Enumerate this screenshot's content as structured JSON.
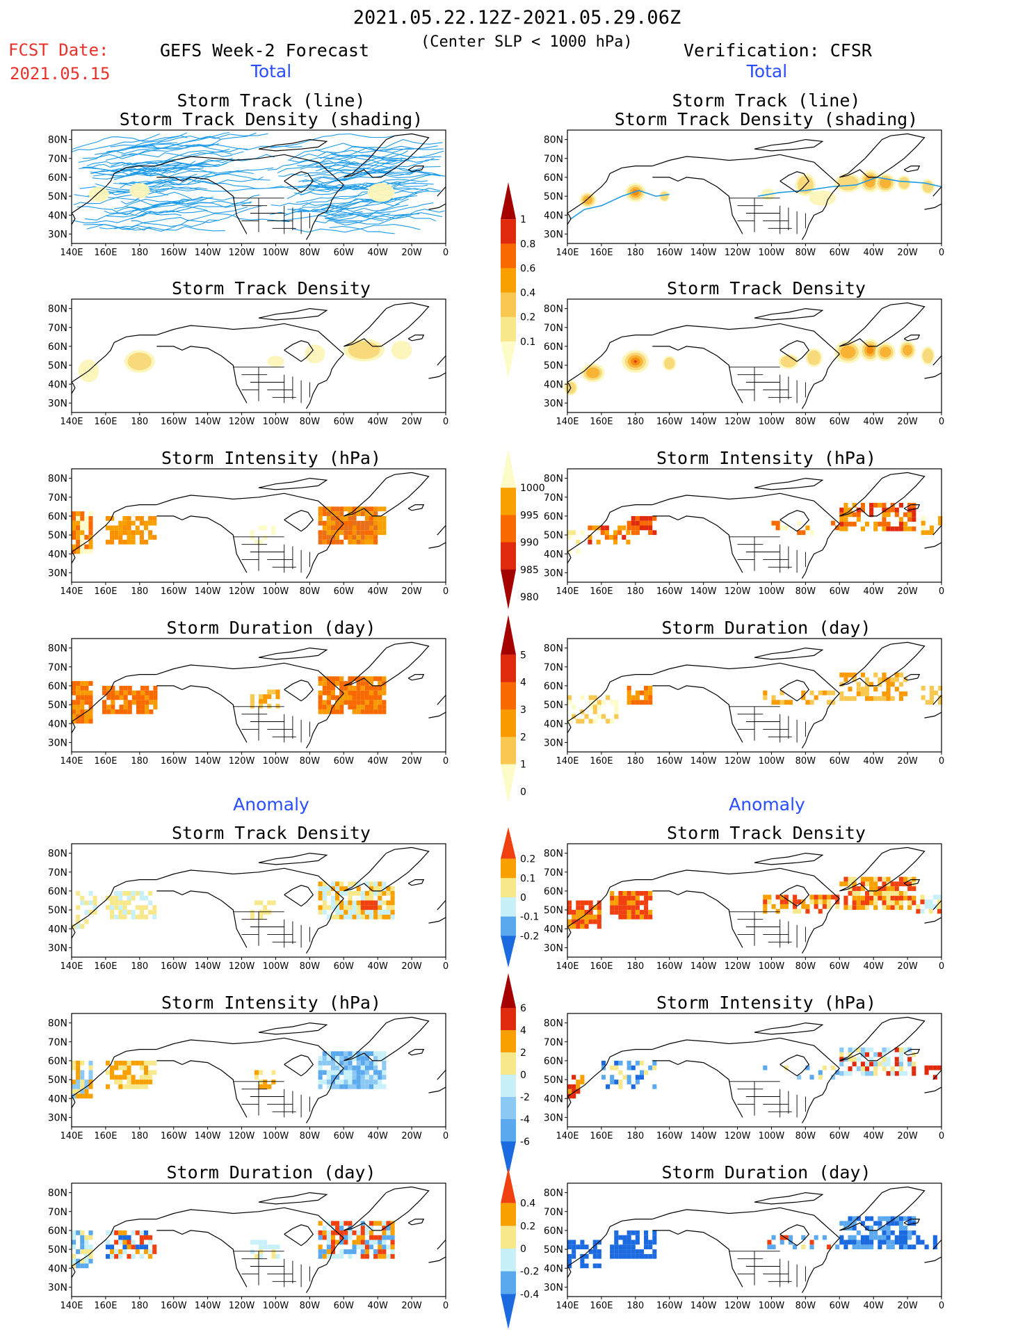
{
  "header": {
    "date_range": "2021.05.22.12Z-2021.05.29.06Z",
    "criterion": "(Center SLP < 1000 hPa)",
    "fcst_label": "FCST Date:",
    "fcst_date": "2021.05.15",
    "left_title": "GEFS Week-2 Forecast",
    "right_title": "Verification: CFSR"
  },
  "sections": {
    "total_left": "Total",
    "total_right": "Total",
    "anomaly_left": "Anomaly",
    "anomaly_right": "Anomaly"
  },
  "panel_titles": {
    "track_line_1": "Storm Track (line)",
    "track_line_2": "Storm Track Density (shading)",
    "density": "Storm Track Density",
    "intensity": "Storm Intensity (hPa)",
    "duration": "Storm Duration (day)"
  },
  "axes": {
    "lon_ticks": [
      "140E",
      "160E",
      "180",
      "160W",
      "140W",
      "120W",
      "100W",
      "80W",
      "60W",
      "40W",
      "20W",
      "0"
    ],
    "lat_ticks": [
      "80N",
      "70N",
      "60N",
      "50N",
      "40N",
      "30N"
    ]
  },
  "colorbars": {
    "total_density": {
      "labels": [
        "1",
        "0.8",
        "0.6",
        "0.4",
        "0.2",
        "0.1"
      ],
      "colors": [
        "#a50000",
        "#e02a0e",
        "#f86a00",
        "#f8a000",
        "#f8c850",
        "#f8e88c",
        "#fdfbc8"
      ]
    },
    "total_intensity": {
      "labels": [
        "1000",
        "995",
        "990",
        "985",
        "980"
      ],
      "colors": [
        "#fdfbc8",
        "#f8a000",
        "#f86a00",
        "#e02a0e",
        "#a50000"
      ]
    },
    "total_duration": {
      "labels": [
        "5",
        "4",
        "3",
        "2",
        "1",
        "0"
      ],
      "colors": [
        "#a50000",
        "#e02a0e",
        "#f86a00",
        "#f89a00",
        "#f8c850",
        "#fdfbc8"
      ]
    },
    "anom_density": {
      "labels": [
        "0.2",
        "0.1",
        "0",
        "-0.1",
        "-0.2"
      ],
      "colors": [
        "#f04010",
        "#f8a000",
        "#f8e88c",
        "#c8f0f8",
        "#5aa8ee",
        "#1c6ae0"
      ]
    },
    "anom_intensity": {
      "labels": [
        "6",
        "4",
        "2",
        "0",
        "-2",
        "-4",
        "-6"
      ],
      "colors": [
        "#a50000",
        "#e02a0e",
        "#f8a000",
        "#f8e88c",
        "#c8f0f8",
        "#8cc8f4",
        "#5aa8ee",
        "#1c6ae0"
      ]
    },
    "anom_duration": {
      "labels": [
        "0.4",
        "0.2",
        "0",
        "-0.2",
        "-0.4"
      ],
      "colors": [
        "#f04010",
        "#f8a000",
        "#f8e88c",
        "#c8f0f8",
        "#5aa8ee",
        "#1c6ae0"
      ]
    }
  }
}
